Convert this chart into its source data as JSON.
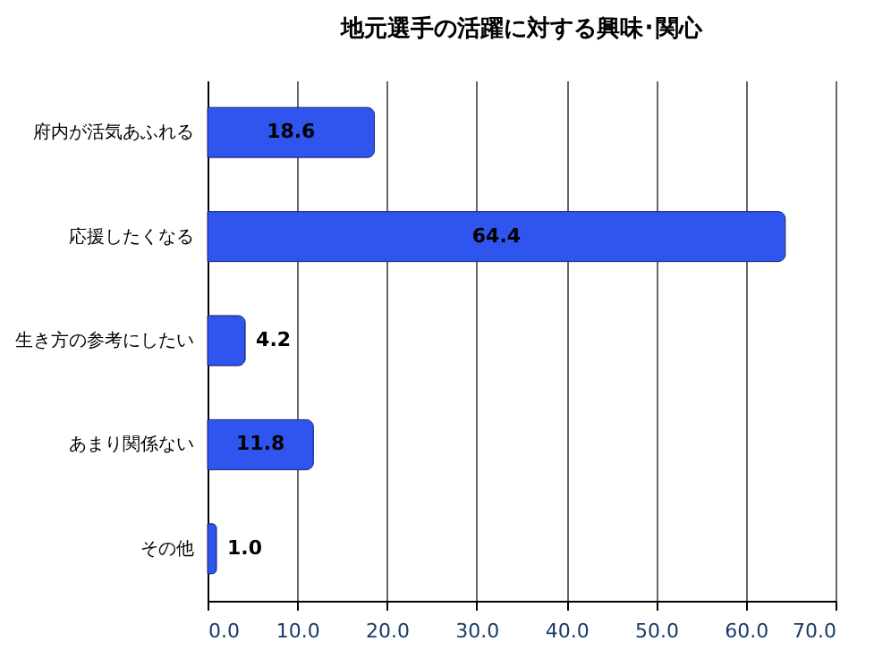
{
  "chart_data": {
    "type": "bar",
    "orientation": "horizontal",
    "title": "地元選手の活躍に対する興味･関心",
    "categories": [
      "府内が活気あふれる",
      "応援したくなる",
      "生き方の参考にしたい",
      "あまり関係ない",
      "その他"
    ],
    "values": [
      18.6,
      64.4,
      4.2,
      11.8,
      1.0
    ],
    "value_labels": [
      "18.6",
      "64.4",
      "4.2",
      "11.8",
      "1.0"
    ],
    "color": "#2f55ee",
    "xlim": [
      0,
      70
    ],
    "xticks": [
      {
        "value": 0,
        "label": "0.0"
      },
      {
        "value": 10,
        "label": "10.0"
      },
      {
        "value": 20,
        "label": "20.0"
      },
      {
        "value": 30,
        "label": "30.0"
      },
      {
        "value": 40,
        "label": "40.0"
      },
      {
        "value": 50,
        "label": "50.0"
      },
      {
        "value": 60,
        "label": "60.0"
      },
      {
        "value": 70,
        "label": "70.0"
      }
    ],
    "grid": "x"
  }
}
